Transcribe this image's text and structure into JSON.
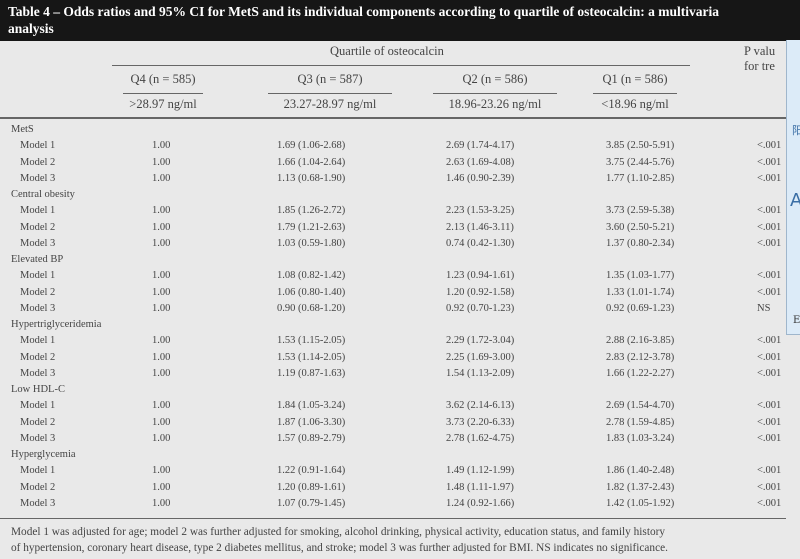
{
  "title": "Table 4 – Odds ratios and 95% CI for MetS and its individual components according to quartile of osteocalcin: a multivariate analysis",
  "title_line1": "Table 4 – Odds ratios and 95% CI for MetS and its individual components according to quartile of osteocalcin: a multivaria",
  "title_line2": "analysis",
  "header": {
    "spanner": "Quartile of osteocalcin",
    "p_label_line1": "P valu",
    "p_label_line2": "for tre",
    "columns": [
      {
        "label": "Q4 (n = 585)",
        "range": ">28.97 ng/ml"
      },
      {
        "label": "Q3 (n = 587)",
        "range": "23.27-28.97 ng/ml"
      },
      {
        "label": "Q2 (n = 586)",
        "range": "18.96-23.26 ng/ml"
      },
      {
        "label": "Q1 (n = 586)",
        "range": "<18.96 ng/ml"
      }
    ]
  },
  "groups": [
    {
      "name": "MetS",
      "rows": [
        {
          "model": "Model 1",
          "q4": "1.00",
          "q3": "1.69 (1.06-2.68)",
          "q2": "2.69 (1.74-4.17)",
          "q1": "3.85 (2.50-5.91)",
          "p": "<.001"
        },
        {
          "model": "Model 2",
          "q4": "1.00",
          "q3": "1.66 (1.04-2.64)",
          "q2": "2.63 (1.69-4.08)",
          "q1": "3.75 (2.44-5.76)",
          "p": "<.001"
        },
        {
          "model": "Model 3",
          "q4": "1.00",
          "q3": "1.13 (0.68-1.90)",
          "q2": "1.46 (0.90-2.39)",
          "q1": "1.77 (1.10-2.85)",
          "p": "<.001"
        }
      ]
    },
    {
      "name": "Central obesity",
      "rows": [
        {
          "model": "Model 1",
          "q4": "1.00",
          "q3": "1.85 (1.26-2.72)",
          "q2": "2.23 (1.53-3.25)",
          "q1": "3.73 (2.59-5.38)",
          "p": "<.001"
        },
        {
          "model": "Model 2",
          "q4": "1.00",
          "q3": "1.79 (1.21-2.63)",
          "q2": "2.13 (1.46-3.11)",
          "q1": "3.60 (2.50-5.21)",
          "p": "<.001"
        },
        {
          "model": "Model 3",
          "q4": "1.00",
          "q3": "1.03 (0.59-1.80)",
          "q2": "0.74 (0.42-1.30)",
          "q1": "1.37 (0.80-2.34)",
          "p": "<.001"
        }
      ]
    },
    {
      "name": "Elevated BP",
      "rows": [
        {
          "model": "Model 1",
          "q4": "1.00",
          "q3": "1.08 (0.82-1.42)",
          "q2": "1.23 (0.94-1.61)",
          "q1": "1.35 (1.03-1.77)",
          "p": "<.001"
        },
        {
          "model": "Model 2",
          "q4": "1.00",
          "q3": "1.06 (0.80-1.40)",
          "q2": "1.20 (0.92-1.58)",
          "q1": "1.33 (1.01-1.74)",
          "p": "<.001"
        },
        {
          "model": "Model 3",
          "q4": "1.00",
          "q3": "0.90 (0.68-1.20)",
          "q2": "0.92 (0.70-1.23)",
          "q1": "0.92 (0.69-1.23)",
          "p": "NS"
        }
      ]
    },
    {
      "name": "Hypertriglyceridemia",
      "rows": [
        {
          "model": "Model 1",
          "q4": "1.00",
          "q3": "1.53 (1.15-2.05)",
          "q2": "2.29 (1.72-3.04)",
          "q1": "2.88 (2.16-3.85)",
          "p": "<.001"
        },
        {
          "model": "Model 2",
          "q4": "1.00",
          "q3": "1.53 (1.14-2.05)",
          "q2": "2.25 (1.69-3.00)",
          "q1": "2.83 (2.12-3.78)",
          "p": "<.001"
        },
        {
          "model": "Model 3",
          "q4": "1.00",
          "q3": "1.19 (0.87-1.63)",
          "q2": "1.54 (1.13-2.09)",
          "q1": "1.66 (1.22-2.27)",
          "p": "<.001"
        }
      ]
    },
    {
      "name": "Low HDL-C",
      "rows": [
        {
          "model": "Model 1",
          "q4": "1.00",
          "q3": "1.84 (1.05-3.24)",
          "q2": "3.62 (2.14-6.13)",
          "q1": "2.69 (1.54-4.70)",
          "p": "<.001"
        },
        {
          "model": "Model 2",
          "q4": "1.00",
          "q3": "1.87 (1.06-3.30)",
          "q2": "3.73 (2.20-6.33)",
          "q1": "2.78 (1.59-4.85)",
          "p": "<.001"
        },
        {
          "model": "Model 3",
          "q4": "1.00",
          "q3": "1.57 (0.89-2.79)",
          "q2": "2.78 (1.62-4.75)",
          "q1": "1.83 (1.03-3.24)",
          "p": "<.001"
        }
      ]
    },
    {
      "name": "Hyperglycemia",
      "rows": [
        {
          "model": "Model 1",
          "q4": "1.00",
          "q3": "1.22 (0.91-1.64)",
          "q2": "1.49 (1.12-1.99)",
          "q1": "1.86 (1.40-2.48)",
          "p": "<.001"
        },
        {
          "model": "Model 2",
          "q4": "1.00",
          "q3": "1.20 (0.89-1.61)",
          "q2": "1.48 (1.11-1.97)",
          "q1": "1.82 (1.37-2.43)",
          "p": "<.001"
        },
        {
          "model": "Model 3",
          "q4": "1.00",
          "q3": "1.07 (0.79-1.45)",
          "q2": "1.24 (0.92-1.66)",
          "q1": "1.42 (1.05-1.92)",
          "p": "<.001"
        }
      ]
    }
  ],
  "footnote_line1": "Model 1 was adjusted for age; model 2 was further adjusted for smoking, alcohol drinking, physical activity, education status, and family history",
  "footnote_line2": "of hypertension, coronary heart disease, type 2 diabetes mellitus, and stroke; model 3 was further adjusted for BMI. NS indicates no significance.",
  "overlay": {
    "glyph_top": "阳",
    "glyph_mid": "A",
    "glyph_bottom": "E"
  },
  "colors": {
    "title_bg": "#161616",
    "page_bg": "#e9e9e9",
    "overlay_bg": "#dcebf8"
  }
}
